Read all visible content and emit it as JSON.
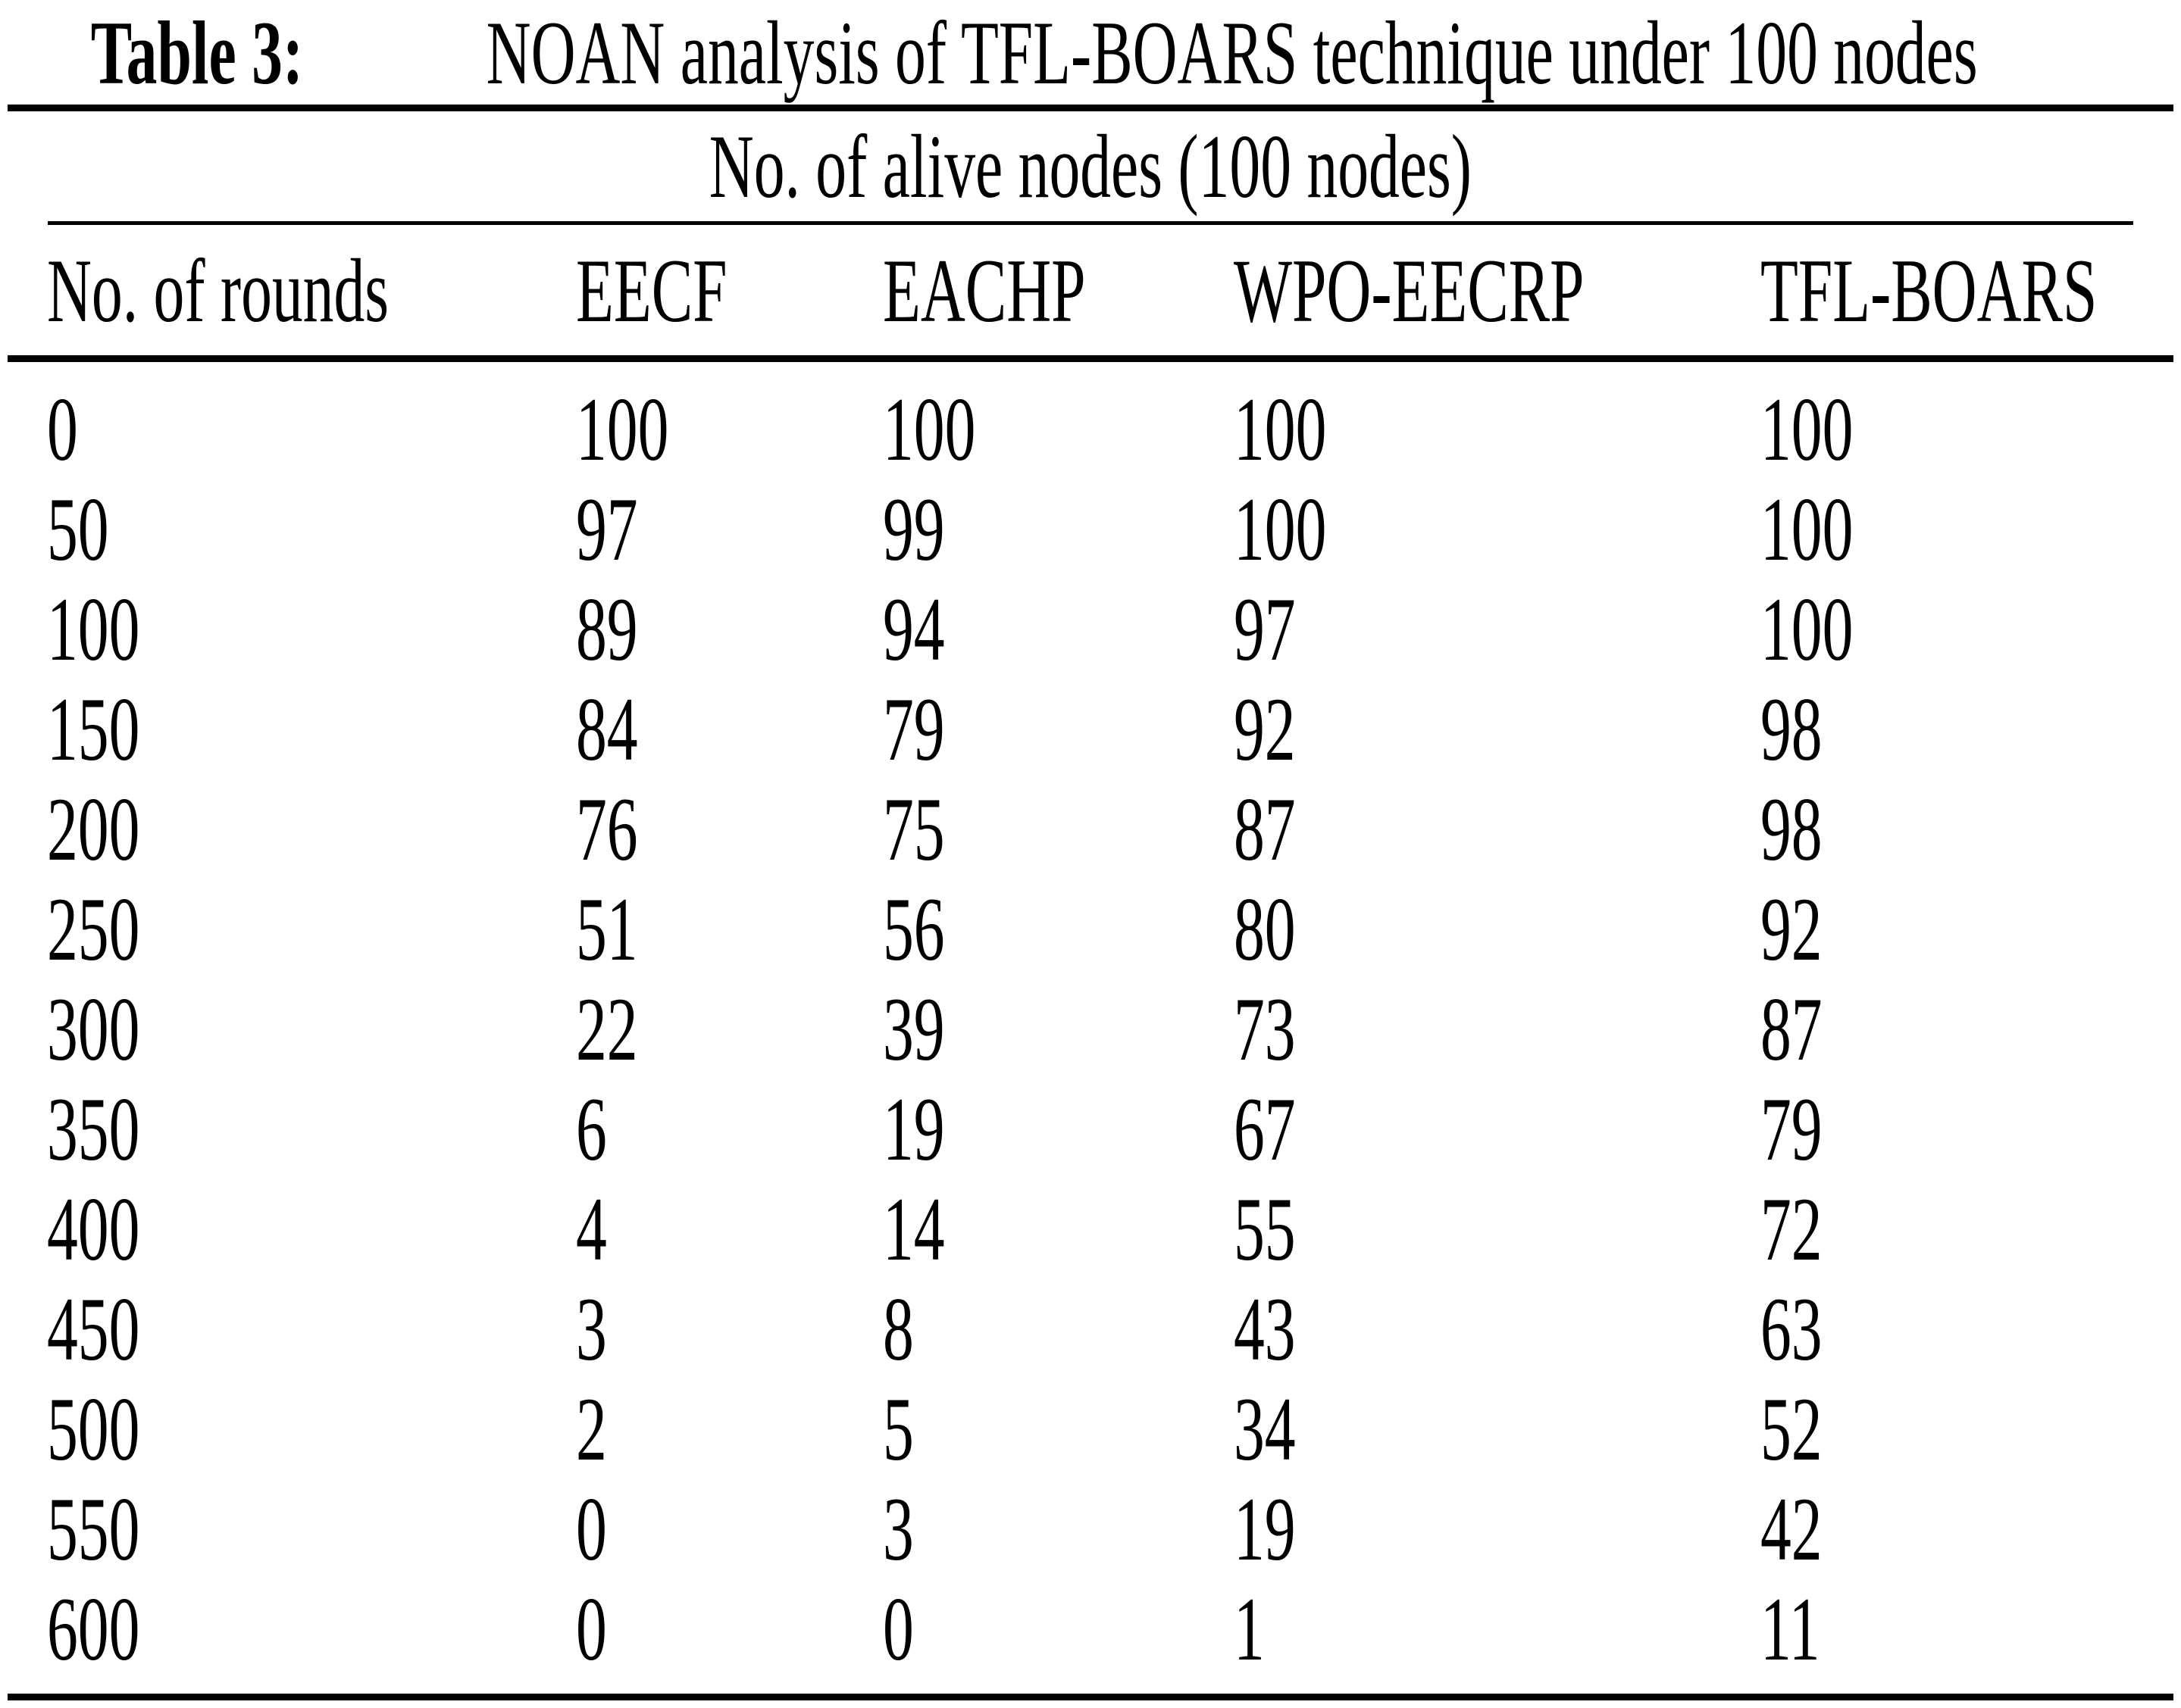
{
  "page": {
    "background": "#ffffff",
    "text_color": "#000000"
  },
  "caption": {
    "label": "Table 3:",
    "text": "NOAN analysis of TFL-BOARS technique under 100 nodes"
  },
  "table": {
    "spanning_header": "No. of alive nodes (100 nodes)",
    "columns": [
      "No. of rounds",
      "EECF",
      "EACHP",
      "WPO-EECRP",
      "TFL-BOARS"
    ],
    "rows": [
      [
        "0",
        "100",
        "100",
        "100",
        "100"
      ],
      [
        "50",
        "97",
        "99",
        "100",
        "100"
      ],
      [
        "100",
        "89",
        "94",
        "97",
        "100"
      ],
      [
        "150",
        "84",
        "79",
        "92",
        "98"
      ],
      [
        "200",
        "76",
        "75",
        "87",
        "98"
      ],
      [
        "250",
        "51",
        "56",
        "80",
        "92"
      ],
      [
        "300",
        "22",
        "39",
        "73",
        "87"
      ],
      [
        "350",
        "6",
        "19",
        "67",
        "79"
      ],
      [
        "400",
        "4",
        "14",
        "55",
        "72"
      ],
      [
        "450",
        "3",
        "8",
        "43",
        "63"
      ],
      [
        "500",
        "2",
        "5",
        "34",
        "52"
      ],
      [
        "550",
        "0",
        "3",
        "19",
        "42"
      ],
      [
        "600",
        "0",
        "0",
        "1",
        "11"
      ]
    ]
  },
  "chart_data": {
    "type": "table",
    "title": "Table 3: NOAN analysis of TFL-BOARS technique under 100 nodes",
    "spanning_header": "No. of alive nodes (100 nodes)",
    "columns": [
      "No. of rounds",
      "EECF",
      "EACHP",
      "WPO-EECRP",
      "TFL-BOARS"
    ],
    "rows": [
      [
        0,
        100,
        100,
        100,
        100
      ],
      [
        50,
        97,
        99,
        100,
        100
      ],
      [
        100,
        89,
        94,
        97,
        100
      ],
      [
        150,
        84,
        79,
        92,
        98
      ],
      [
        200,
        76,
        75,
        87,
        98
      ],
      [
        250,
        51,
        56,
        80,
        92
      ],
      [
        300,
        22,
        39,
        73,
        87
      ],
      [
        350,
        6,
        19,
        67,
        79
      ],
      [
        400,
        4,
        14,
        55,
        72
      ],
      [
        450,
        3,
        8,
        43,
        63
      ],
      [
        500,
        2,
        5,
        34,
        52
      ],
      [
        550,
        0,
        3,
        19,
        42
      ],
      [
        600,
        0,
        0,
        1,
        11
      ]
    ]
  }
}
